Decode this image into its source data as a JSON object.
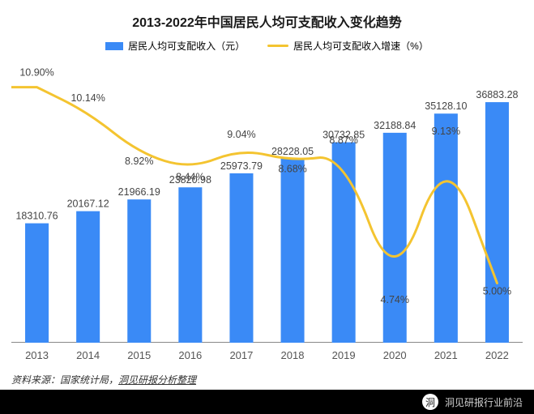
{
  "title": {
    "text": "2013-2022年中国居民人均可支配收入变化趋势",
    "fontsize": 16,
    "color": "#1a1a1a"
  },
  "legend": {
    "bar": {
      "label": "居民人均可支配收入（元）",
      "swatch": "#3a8af6"
    },
    "line": {
      "label": "居民人均可支配收入增速（%）",
      "swatch": "#f4c430"
    }
  },
  "chart": {
    "type": "bar+line",
    "categories": [
      "2013",
      "2014",
      "2015",
      "2016",
      "2017",
      "2018",
      "2019",
      "2020",
      "2021",
      "2022"
    ],
    "bars": {
      "values": [
        18310.76,
        20167.12,
        21966.19,
        23820.98,
        25973.79,
        28228.05,
        30732.85,
        32188.84,
        35128.1,
        36883.28
      ],
      "labels": [
        "18310.76",
        "20167.12",
        "21966.19",
        "23820.98",
        "25973.79",
        "28228.05",
        "30732.85",
        "32188.84",
        "35128.10",
        "36883.28"
      ],
      "color": "#3a8af6",
      "ymax": 40000,
      "bar_width_ratio": 0.46,
      "label_fontsize": 12.5,
      "label_color": "#444444"
    },
    "line": {
      "values": [
        10.9,
        10.14,
        8.92,
        8.44,
        9.04,
        8.68,
        8.87,
        4.74,
        9.13,
        5.0
      ],
      "labels": [
        "10.90%",
        "10.14%",
        "8.92%",
        "8.44%",
        "9.04%",
        "8.68%",
        "8.87%",
        "4.74%",
        "9.13%",
        "5.00%"
      ],
      "color": "#f4c430",
      "stroke_width": 3,
      "ymin": 3.5,
      "ymax": 11.5,
      "label_fontsize": 12.5,
      "label_color": "#444444",
      "label_dy": [
        -14,
        -14,
        14,
        14,
        -14,
        14,
        -14,
        14,
        -14,
        14
      ]
    },
    "x_axis": {
      "fontsize": 13,
      "color": "#555555",
      "line_color": "#888888"
    },
    "background": "#ffffff"
  },
  "source": {
    "prefix": "资料来源：国家统计局，",
    "link": "洞见研报分析整理",
    "color": "#333333"
  },
  "footer": {
    "brand": "洞见研报行业前沿",
    "icon_initial": "洞",
    "text_color": "#d0d0d0"
  }
}
